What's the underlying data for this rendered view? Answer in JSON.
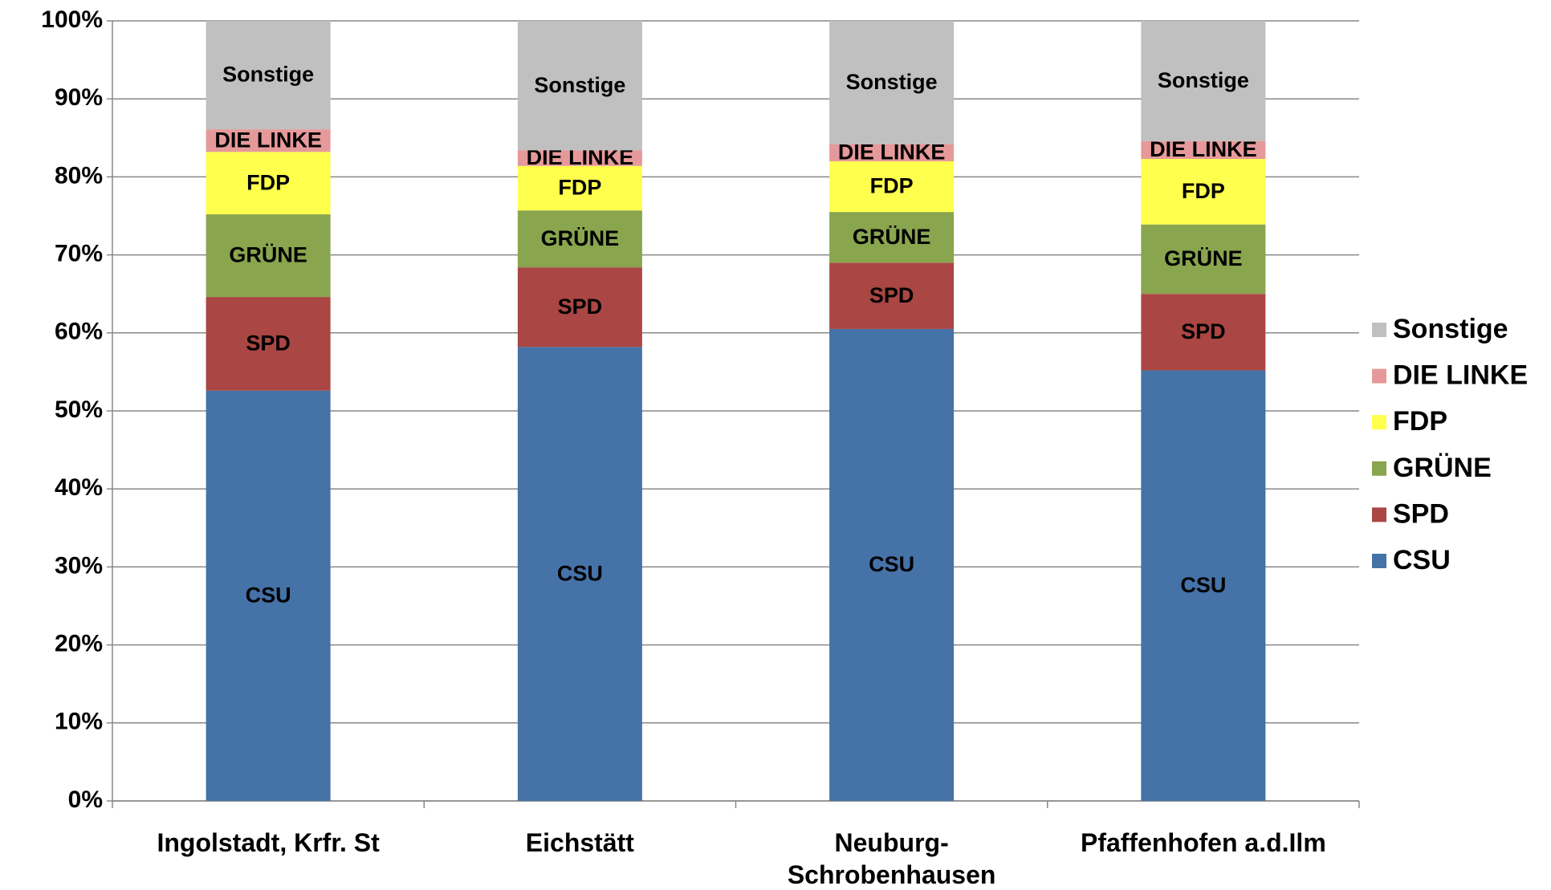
{
  "chart_data": {
    "type": "stacked_bar",
    "categories": [
      "Ingolstadt, Krfr. St",
      "Eichstätt",
      "Neuburg-Schrobenhausen",
      "Pfaffenhofen a.d.Ilm"
    ],
    "series": [
      {
        "name": "CSU",
        "color": "#4572a7",
        "values": [
          52.6,
          58.2,
          60.5,
          55.2
        ]
      },
      {
        "name": "SPD",
        "color": "#aa4643",
        "values": [
          12.0,
          10.2,
          8.5,
          9.8
        ]
      },
      {
        "name": "GRÜNE",
        "color": "#89a54e",
        "values": [
          10.6,
          7.3,
          6.5,
          8.9
        ]
      },
      {
        "name": "FDP",
        "color": "#ffff4d",
        "values": [
          8.0,
          5.7,
          6.5,
          8.4
        ]
      },
      {
        "name": "DIE LINKE",
        "color": "#e6999a",
        "values": [
          2.9,
          2.0,
          2.2,
          2.3
        ]
      },
      {
        "name": "Sonstige",
        "color": "#c0c0c0",
        "values": [
          13.9,
          16.6,
          15.8,
          15.4
        ]
      }
    ],
    "ylim": [
      0,
      100
    ],
    "yticks": [
      {
        "value": 0,
        "label": "0%"
      },
      {
        "value": 10,
        "label": "10%"
      },
      {
        "value": 20,
        "label": "20%"
      },
      {
        "value": 30,
        "label": "30%"
      },
      {
        "value": 40,
        "label": "40%"
      },
      {
        "value": 50,
        "label": "50%"
      },
      {
        "value": 60,
        "label": "60%"
      },
      {
        "value": 70,
        "label": "70%"
      },
      {
        "value": 80,
        "label": "80%"
      },
      {
        "value": 90,
        "label": "90%"
      },
      {
        "value": 100,
        "label": "100%"
      }
    ],
    "grid": true,
    "legend": "right"
  }
}
